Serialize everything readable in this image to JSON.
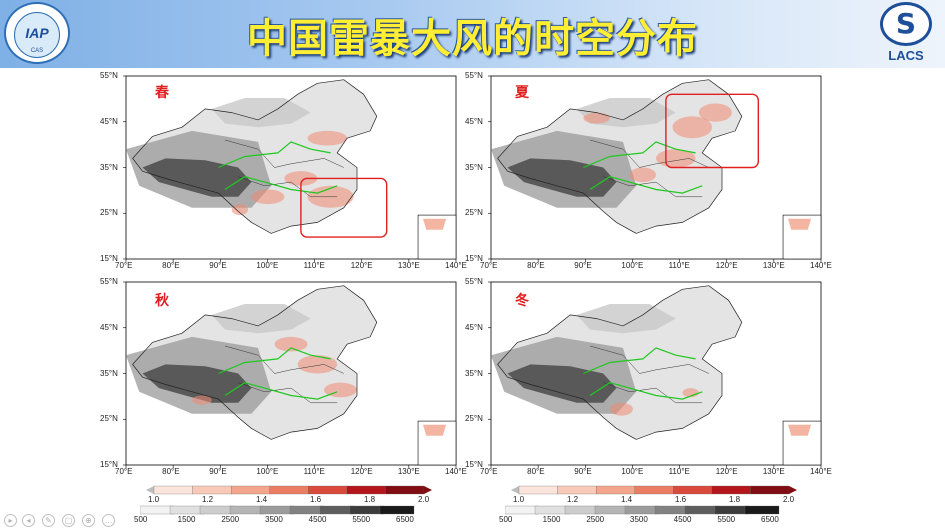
{
  "header": {
    "title": "中国雷暴大风的时空分布",
    "logo_left_text": "IAP",
    "logo_left_sub": "CAS",
    "logo_right_text": "LACS"
  },
  "panels": [
    {
      "season": "春",
      "y_ticks": [
        "55°N",
        "45°N",
        "35°N",
        "25°N",
        "15°N"
      ],
      "x_ticks": [
        "70°E",
        "80°E",
        "90°E",
        "100°E",
        "110°E",
        "120°E",
        "130°E",
        "140°E"
      ],
      "highlight": "south-east"
    },
    {
      "season": "夏",
      "y_ticks": [
        "55°N",
        "45°N",
        "35°N",
        "25°N",
        "15°N"
      ],
      "x_ticks": [
        "70°E",
        "80°E",
        "90°E",
        "100°E",
        "110°E",
        "120°E",
        "130°E",
        "140°E"
      ],
      "highlight": "north-east"
    },
    {
      "season": "秋",
      "y_ticks": [
        "55°N",
        "45°N",
        "35°N",
        "25°N",
        "15°N"
      ],
      "x_ticks": [
        "70°E",
        "80°E",
        "90°E",
        "100°E",
        "110°E",
        "120°E",
        "130°E",
        "140°E"
      ],
      "highlight": ""
    },
    {
      "season": "冬",
      "y_ticks": [
        "55°N",
        "45°N",
        "35°N",
        "25°N",
        "15°N"
      ],
      "x_ticks": [
        "70°E",
        "80°E",
        "90°E",
        "100°E",
        "110°E",
        "120°E",
        "130°E",
        "140°E"
      ],
      "highlight": ""
    }
  ],
  "colorbars": {
    "red_ticks": [
      "1.0",
      "1.2",
      "1.4",
      "1.6",
      "1.8",
      "2.0"
    ],
    "gray_ticks": [
      "500",
      "1500",
      "2500",
      "3500",
      "4500",
      "5500",
      "6500"
    ],
    "red_colors": [
      "#fbe4dc",
      "#f8c9b7",
      "#f3a68c",
      "#ea7d62",
      "#d9493c",
      "#b5161c",
      "#7f0d12"
    ],
    "gray_colors": [
      "#f2f2f2",
      "#e0e0e0",
      "#cdcdcd",
      "#b5b5b5",
      "#9c9c9c",
      "#828282",
      "#5e5e5e",
      "#3c3c3c",
      "#1a1a1a"
    ]
  },
  "toolbar": {
    "icons": [
      "play-icon",
      "back-icon",
      "pen-icon",
      "copy-icon",
      "zoom-icon",
      "more-icon"
    ]
  }
}
